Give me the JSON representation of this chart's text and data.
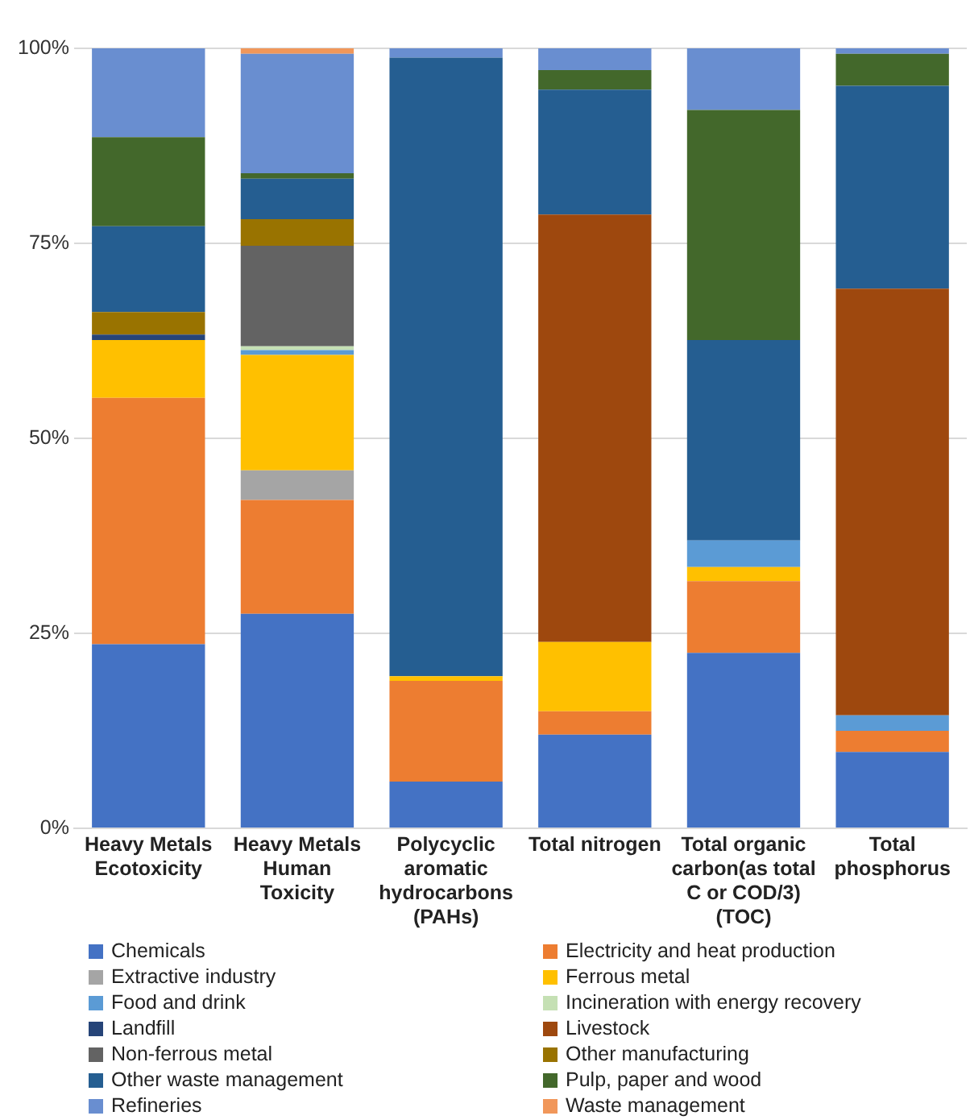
{
  "chart_data": {
    "type": "bar",
    "stacked": true,
    "categories": [
      "Heavy Metals Ecotoxicity",
      "Heavy Metals Human Toxicity",
      "Polycyclic aromatic hydrocarbons (PAHs)",
      "Total nitrogen",
      "Total organic carbon(as total C or COD/3) (TOC)",
      "Total phosphorus"
    ],
    "ylim": [
      0,
      100
    ],
    "yticks": [
      {
        "value": 0,
        "label": "0%"
      },
      {
        "value": 25,
        "label": "25%"
      },
      {
        "value": 50,
        "label": "50%"
      },
      {
        "value": 75,
        "label": "75%"
      },
      {
        "value": 100,
        "label": "100%"
      }
    ],
    "grid": "y",
    "legend": "bottom",
    "series": [
      {
        "name": "Chemicals",
        "color": "#4472c4",
        "values": [
          23.6,
          27.5,
          6.0,
          12.0,
          22.5,
          9.8
        ]
      },
      {
        "name": "Electricity and heat production",
        "color": "#ed7d31",
        "values": [
          31.6,
          14.6,
          12.9,
          3.0,
          9.2,
          2.7
        ]
      },
      {
        "name": "Extractive industry",
        "color": "#a5a5a5",
        "values": [
          null,
          3.8,
          null,
          null,
          null,
          null
        ]
      },
      {
        "name": "Ferrous metal",
        "color": "#ffc000",
        "values": [
          7.4,
          14.8,
          0.6,
          8.9,
          1.8,
          null
        ]
      },
      {
        "name": "Food and drink",
        "color": "#5b9bd5",
        "values": [
          null,
          0.6,
          null,
          null,
          3.4,
          2.0
        ]
      },
      {
        "name": "Incineration with energy recovery",
        "color": "#c5e0b4",
        "values": [
          null,
          0.5,
          null,
          null,
          null,
          null
        ]
      },
      {
        "name": "Landfill",
        "color": "#264478",
        "values": [
          0.7,
          null,
          null,
          null,
          null,
          null
        ]
      },
      {
        "name": "Livestock",
        "color": "#9e480e",
        "values": [
          null,
          null,
          null,
          54.8,
          null,
          54.7
        ]
      },
      {
        "name": "Non-ferrous metal",
        "color": "#636363",
        "values": [
          null,
          12.9,
          null,
          null,
          null,
          null
        ]
      },
      {
        "name": "Other manufacturing",
        "color": "#997300",
        "values": [
          2.9,
          3.4,
          null,
          null,
          null,
          null
        ]
      },
      {
        "name": "Other waste management",
        "color": "#255e91",
        "values": [
          11.0,
          5.2,
          79.3,
          16.0,
          25.7,
          26.0
        ]
      },
      {
        "name": "Pulp, paper and wood",
        "color": "#43682b",
        "values": [
          11.4,
          0.7,
          null,
          2.5,
          29.5,
          4.1
        ]
      },
      {
        "name": "Refineries",
        "color": "#698ed0",
        "values": [
          11.4,
          15.3,
          1.2,
          2.8,
          7.9,
          0.7
        ]
      },
      {
        "name": "Waste management",
        "color": "#f1975a",
        "values": [
          null,
          0.7,
          null,
          null,
          null,
          null
        ]
      }
    ]
  }
}
